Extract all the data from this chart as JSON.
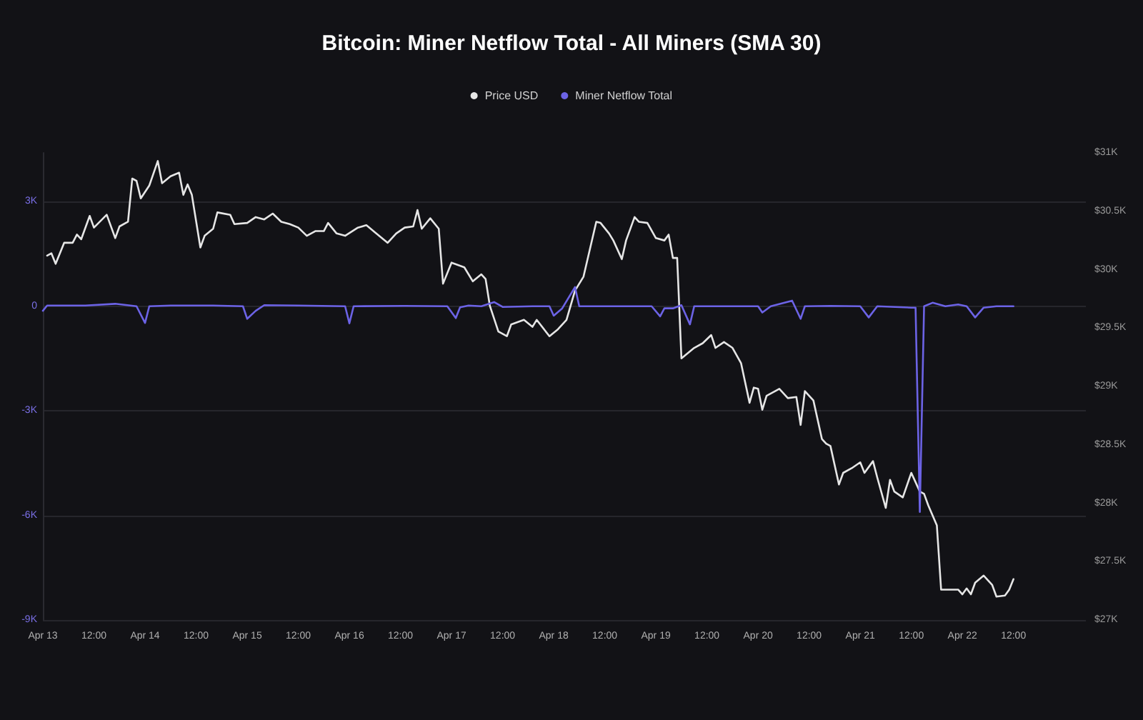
{
  "chart_data": {
    "type": "line",
    "title": "Bitcoin: Miner Netflow Total - All Miners (SMA 30)",
    "legend": "top",
    "grid": "y",
    "marker": "none",
    "line_style": "solid",
    "xlim": [
      "--04-13T00:00",
      "--04-23T05:00"
    ],
    "xticks": [
      {
        "value": "--04-13T00:00",
        "label": "Apr 13"
      },
      {
        "value": "--04-13T12:00",
        "label": "12:00"
      },
      {
        "value": "--04-14T00:00",
        "label": "Apr 14"
      },
      {
        "value": "--04-14T12:00",
        "label": "12:00"
      },
      {
        "value": "--04-15T00:00",
        "label": "Apr 15"
      },
      {
        "value": "--04-15T12:00",
        "label": "12:00"
      },
      {
        "value": "--04-16T00:00",
        "label": "Apr 16"
      },
      {
        "value": "--04-16T12:00",
        "label": "12:00"
      },
      {
        "value": "--04-17T00:00",
        "label": "Apr 17"
      },
      {
        "value": "--04-17T12:00",
        "label": "12:00"
      },
      {
        "value": "--04-18T00:00",
        "label": "Apr 18"
      },
      {
        "value": "--04-18T12:00",
        "label": "12:00"
      },
      {
        "value": "--04-19T00:00",
        "label": "Apr 19"
      },
      {
        "value": "--04-19T12:00",
        "label": "12:00"
      },
      {
        "value": "--04-20T00:00",
        "label": "Apr 20"
      },
      {
        "value": "--04-20T12:00",
        "label": "12:00"
      },
      {
        "value": "--04-21T00:00",
        "label": "Apr 21"
      },
      {
        "value": "--04-21T12:00",
        "label": "12:00"
      },
      {
        "value": "--04-22T00:00",
        "label": "Apr 22"
      },
      {
        "value": "--04-22T12:00",
        "label": "12:00"
      }
    ],
    "ylim": [
      -9000,
      4400
    ],
    "yticks": [
      {
        "value": -9000,
        "label": "-9K"
      },
      {
        "value": -6000,
        "label": "-6K"
      },
      {
        "value": -3000,
        "label": "-3K"
      },
      0,
      {
        "value": 3000,
        "label": "3K"
      }
    ],
    "y2lim": [
      27000,
      31000
    ],
    "y2ticks": [
      {
        "value": 27000,
        "label": "$27K"
      },
      {
        "value": 27500,
        "label": "$27.5K"
      },
      {
        "value": 28000,
        "label": "$28K"
      },
      {
        "value": 28500,
        "label": "$28.5K"
      },
      {
        "value": 29000,
        "label": "$29K"
      },
      {
        "value": 29500,
        "label": "$29.5K"
      },
      {
        "value": 30000,
        "label": "$30K"
      },
      {
        "value": 30500,
        "label": "$30.5K"
      },
      {
        "value": 31000,
        "label": "$31K"
      }
    ],
    "series": [
      {
        "name": "Price USD",
        "color": "#e6e6e6",
        "axis": "y2",
        "x": [
          "--04-13T01:00",
          "--04-13T02:00",
          "--04-13T03:00",
          "--04-13T05:00",
          "--04-13T07:00",
          "--04-13T08:00",
          "--04-13T09:00",
          "--04-13T11:00",
          "--04-13T12:00",
          "--04-13T15:00",
          "--04-13T17:00",
          "--04-13T18:00",
          "--04-13T20:00",
          "--04-13T21:00",
          "--04-13T22:00",
          "--04-13T23:00",
          "--04-14T01:00",
          "--04-14T03:00",
          "--04-14T04:00",
          "--04-14T06:00",
          "--04-14T08:00",
          "--04-14T09:00",
          "--04-14T10:00",
          "--04-14T11:00",
          "--04-14T13:00",
          "--04-14T14:00",
          "--04-14T16:00",
          "--04-14T17:00",
          "--04-14T20:00",
          "--04-14T21:00",
          "--04-15T00:00",
          "--04-15T02:00",
          "--04-15T04:00",
          "--04-15T06:00",
          "--04-15T08:00",
          "--04-15T10:00",
          "--04-15T12:00",
          "--04-15T14:00",
          "--04-15T16:00",
          "--04-15T18:00",
          "--04-15T19:00",
          "--04-15T21:00",
          "--04-15T23:00",
          "--04-16T02:00",
          "--04-16T04:00",
          "--04-16T06:00",
          "--04-16T09:00",
          "--04-16T11:00",
          "--04-16T13:00",
          "--04-16T15:00",
          "--04-16T16:00",
          "--04-16T17:00",
          "--04-16T19:00",
          "--04-16T21:00",
          "--04-16T22:00",
          "--04-17T00:00",
          "--04-17T03:00",
          "--04-17T05:00",
          "--04-17T07:00",
          "--04-17T08:00",
          "--04-17T09:00",
          "--04-17T11:00",
          "--04-17T13:00",
          "--04-17T14:00",
          "--04-17T17:00",
          "--04-17T19:00",
          "--04-17T20:00",
          "--04-17T23:00",
          "--04-18T01:00",
          "--04-18T03:00",
          "--04-18T05:00",
          "--04-18T07:00",
          "--04-18T10:00",
          "--04-18T11:00",
          "--04-18T13:00",
          "--04-18T14:00",
          "--04-18T16:00",
          "--04-18T17:00",
          "--04-18T19:00",
          "--04-18T20:00",
          "--04-18T22:00",
          "--04-19T00:00",
          "--04-19T02:00",
          "--04-19T03:00",
          "--04-19T04:00",
          "--04-19T05:00",
          "--04-19T06:00",
          "--04-19T09:00",
          "--04-19T11:00",
          "--04-19T13:00",
          "--04-19T14:00",
          "--04-19T16:00",
          "--04-19T18:00",
          "--04-19T20:00",
          "--04-19T22:00",
          "--04-19T23:00",
          "--04-20T00:00",
          "--04-20T01:00",
          "--04-20T02:00",
          "--04-20T05:00",
          "--04-20T07:00",
          "--04-20T09:00",
          "--04-20T10:00",
          "--04-20T11:00",
          "--04-20T13:00",
          "--04-20T15:00",
          "--04-20T16:00",
          "--04-20T17:00",
          "--04-20T19:00",
          "--04-20T20:00",
          "--04-20T22:00",
          "--04-21T00:00",
          "--04-21T01:00",
          "--04-21T03:00",
          "--04-21T04:00",
          "--04-21T06:00",
          "--04-21T07:00",
          "--04-21T08:00",
          "--04-21T10:00",
          "--04-21T12:00",
          "--04-21T14:00",
          "--04-21T15:00",
          "--04-21T16:00",
          "--04-21T18:00",
          "--04-21T19:00",
          "--04-21T21:00",
          "--04-21T23:00",
          "--04-22T00:00",
          "--04-22T01:00",
          "--04-22T02:00",
          "--04-22T03:00",
          "--04-22T05:00",
          "--04-22T07:00",
          "--04-22T08:00",
          "--04-22T10:00",
          "--04-22T11:00",
          "--04-22T12:00"
        ],
        "values": [
          30120,
          30140,
          30050,
          30230,
          30230,
          30300,
          30260,
          30460,
          30360,
          30470,
          30270,
          30370,
          30410,
          30780,
          30760,
          30610,
          30720,
          30930,
          30740,
          30800,
          30830,
          30640,
          30730,
          30640,
          30190,
          30290,
          30350,
          30490,
          30470,
          30390,
          30400,
          30450,
          30430,
          30480,
          30410,
          30390,
          30360,
          30290,
          30330,
          30330,
          30400,
          30310,
          30290,
          30360,
          30380,
          30320,
          30230,
          30310,
          30360,
          30370,
          30510,
          30350,
          30440,
          30350,
          29880,
          30060,
          30020,
          29900,
          29960,
          29920,
          29690,
          29470,
          29430,
          29530,
          29570,
          29510,
          29570,
          29430,
          29490,
          29570,
          29820,
          29940,
          30410,
          30400,
          30310,
          30250,
          30090,
          30250,
          30450,
          30410,
          30400,
          30270,
          30250,
          30300,
          30100,
          30100,
          29240,
          29330,
          29370,
          29440,
          29330,
          29380,
          29330,
          29200,
          28860,
          28990,
          28980,
          28800,
          28920,
          28980,
          28900,
          28910,
          28670,
          28960,
          28880,
          28550,
          28510,
          28490,
          28160,
          28260,
          28300,
          28350,
          28260,
          28360,
          28220,
          27960,
          28200,
          28100,
          28050,
          28260,
          28100,
          28080,
          27980,
          27810,
          27260,
          27260,
          27260,
          27220,
          27270,
          27220,
          27320,
          27380,
          27300,
          27200,
          27210,
          27260,
          27350
        ]
      },
      {
        "name": "Miner Netflow Total",
        "color": "#6c63e6",
        "x": [
          "--04-13T00:00",
          "--04-13T01:00",
          "--04-13T05:00",
          "--04-13T10:00",
          "--04-13T17:00",
          "--04-13T22:00",
          "--04-14T00:00",
          "--04-14T01:00",
          "--04-14T06:00",
          "--04-14T16:00",
          "--04-14T23:00",
          "--04-15T00:00",
          "--04-15T02:00",
          "--04-15T04:00",
          "--04-15T12:00",
          "--04-15T23:00",
          "--04-16T00:00",
          "--04-16T01:00",
          "--04-16T13:00",
          "--04-16T23:00",
          "--04-17T01:00",
          "--04-17T02:00",
          "--04-17T04:00",
          "--04-17T07:00",
          "--04-17T10:00",
          "--04-17T12:00",
          "--04-17T19:00",
          "--04-17T23:00",
          "--04-18T00:00",
          "--04-18T02:00",
          "--04-18T05:00",
          "--04-18T06:00",
          "--04-18T15:00",
          "--04-18T23:00",
          "--04-19T01:00",
          "--04-19T02:00",
          "--04-19T04:00",
          "--04-19T06:00",
          "--04-19T08:00",
          "--04-19T09:00",
          "--04-19T16:00",
          "--04-20T00:00",
          "--04-20T01:00",
          "--04-20T03:00",
          "--04-20T08:00",
          "--04-20T10:00",
          "--04-20T11:00",
          "--04-20T17:00",
          "--04-21T00:00",
          "--04-21T02:00",
          "--04-21T04:00",
          "--04-21T12:00",
          "--04-21T13:00",
          "--04-21T14:00",
          "--04-21T15:00",
          "--04-21T17:00",
          "--04-21T20:00",
          "--04-21T23:00",
          "--04-22T01:00",
          "--04-22T03:00",
          "--04-22T05:00",
          "--04-22T08:00",
          "--04-22T12:00"
        ],
        "values": [
          -130,
          20,
          20,
          20,
          70,
          0,
          -480,
          0,
          20,
          20,
          0,
          -360,
          -130,
          30,
          20,
          0,
          -490,
          0,
          10,
          0,
          -340,
          -30,
          20,
          0,
          120,
          -20,
          0,
          0,
          -270,
          -60,
          550,
          0,
          0,
          0,
          -290,
          -60,
          -60,
          30,
          -520,
          0,
          0,
          0,
          -180,
          0,
          160,
          -360,
          0,
          10,
          0,
          -320,
          0,
          -40,
          -40,
          -5900,
          0,
          100,
          0,
          50,
          0,
          -320,
          -40,
          0,
          0
        ]
      }
    ]
  }
}
